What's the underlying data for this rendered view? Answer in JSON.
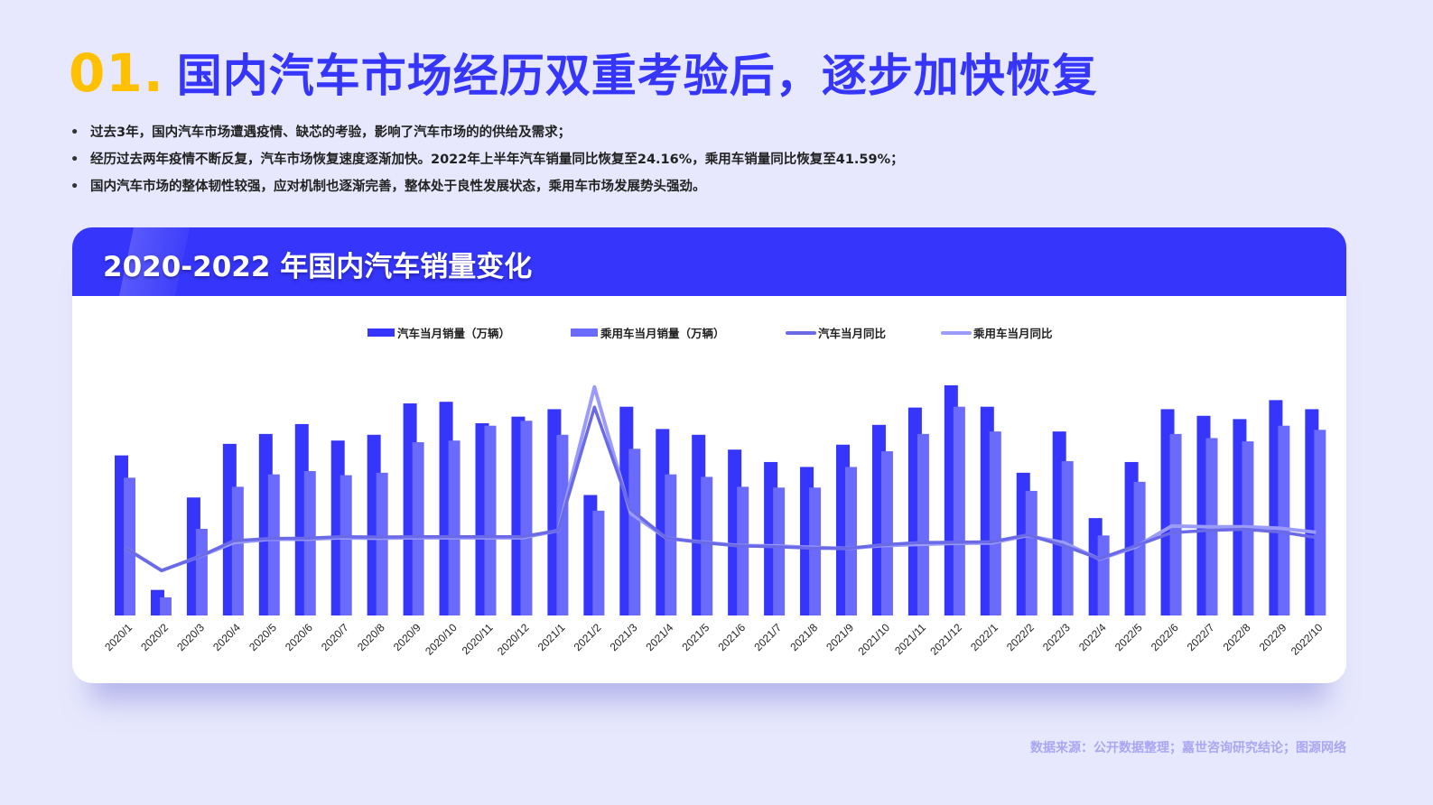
{
  "header": {
    "number": "01.",
    "title": "国内汽车市场经历双重考验后，逐步加快恢复"
  },
  "bullets": [
    "过去3年，国内汽车市场遭遇疫情、缺芯的考验，影响了汽车市场的的供给及需求；",
    "经历过去两年疫情不断反复，汽车市场恢复速度逐渐加快。2022年上半年汽车销量同比恢复至24.16%，乘用车销量同比恢复至41.59%；",
    "国内汽车市场的整体韧性较强，应对机制也逐渐完善，整体处于良性发展状态，乘用车市场发展势头强劲。"
  ],
  "bullet_symbol": "•",
  "card": {
    "title": "2020-2022 年国内汽车销量变化"
  },
  "colors": {
    "accent": "#3535fb",
    "title_number": "#ffc000",
    "passenger_bar": "#6a6afd",
    "car_yoy_line": "#6a6ae8",
    "passenger_yoy_line": "#9b9bfb",
    "background": "#e7e8fd",
    "source_text": "#a9a6f3"
  },
  "legend": [
    {
      "label": "汽车当月销量（万辆）",
      "kind": "bar",
      "color": "#3535fb"
    },
    {
      "label": "乘用车当月销量（万辆）",
      "kind": "bar",
      "color": "#6a6afd"
    },
    {
      "label": "汽车当月同比",
      "kind": "line",
      "color": "#6a6ae8"
    },
    {
      "label": "乘用车当月同比",
      "kind": "line",
      "color": "#9b9bfb"
    }
  ],
  "chart_data": {
    "type": "bar",
    "title": "2020-2022 年国内汽车销量变化",
    "xlabel": "",
    "ylabel": "",
    "grid": false,
    "legend_position": "top",
    "y_axis_visible": false,
    "categories": [
      "2020/1",
      "2020/2",
      "2020/3",
      "2020/4",
      "2020/5",
      "2020/6",
      "2020/7",
      "2020/8",
      "2020/9",
      "2020/10",
      "2020/11",
      "2020/12",
      "2021/1",
      "2021/2",
      "2021/3",
      "2021/4",
      "2021/5",
      "2021/6",
      "2021/7",
      "2021/8",
      "2021/9",
      "2021/10",
      "2021/11",
      "2021/12",
      "2022/1",
      "2022/2",
      "2022/3",
      "2022/4",
      "2022/5",
      "2022/6",
      "2022/7",
      "2022/8",
      "2022/9",
      "2022/10"
    ],
    "series": [
      {
        "name": "汽车当月销量（万辆）",
        "type": "bar",
        "values": [
          194,
          31,
          143,
          208,
          220,
          232,
          212,
          219,
          257,
          259,
          233,
          241,
          250,
          146,
          253,
          226,
          219,
          201,
          186,
          180,
          207,
          231,
          252,
          279,
          253,
          173,
          223,
          118,
          186,
          250,
          242,
          238,
          261,
          250
        ]
      },
      {
        "name": "乘用车当月销量（万辆）",
        "type": "bar",
        "values": [
          167,
          22,
          105,
          156,
          171,
          175,
          170,
          173,
          210,
          212,
          230,
          236,
          219,
          127,
          202,
          171,
          168,
          156,
          155,
          155,
          180,
          199,
          220,
          253,
          223,
          151,
          187,
          97,
          162,
          220,
          215,
          211,
          230,
          225
        ]
      },
      {
        "name": "汽车当月同比",
        "type": "line",
        "values": [
          -18,
          -79,
          -43,
          2,
          8,
          9,
          13,
          12,
          13,
          13,
          13,
          13,
          30,
          365,
          87,
          9,
          -3,
          -12,
          -14,
          -18,
          -19,
          -9,
          -3,
          -2,
          -1,
          18,
          -11,
          -47,
          -12,
          24,
          30,
          33,
          26,
          11
        ]
      },
      {
        "name": "乘用车当月同比",
        "type": "line",
        "values": [
          -18,
          -79,
          -43,
          -3,
          6,
          6,
          10,
          9,
          10,
          10,
          10,
          10,
          30,
          420,
          77,
          9,
          -2,
          -11,
          -12,
          -16,
          -19,
          -11,
          -8,
          -5,
          -4,
          16,
          -3,
          -48,
          -15,
          42,
          40,
          40,
          36,
          25
        ]
      }
    ],
    "line_value_range": [
      -80,
      420
    ],
    "bar_value_range": [
      0,
      280
    ]
  },
  "source": "数据来源：公开数据整理；嘉世咨询研究结论；图源网络"
}
